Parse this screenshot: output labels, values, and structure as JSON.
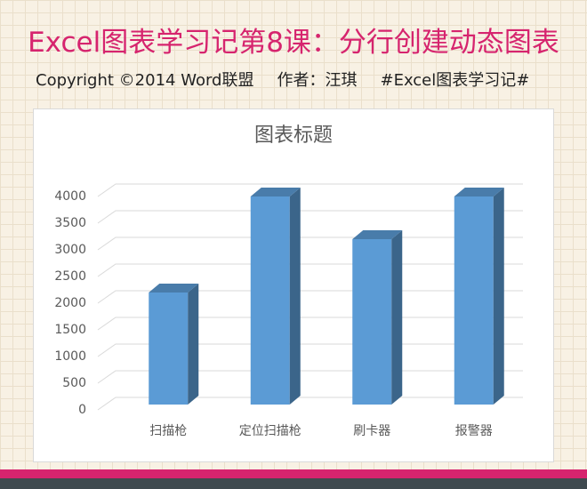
{
  "header": {
    "title": "Excel图表学习记第8课：分行创建动态图表",
    "copyright": "Copyright ©2014 Word联盟",
    "author": "作者：汪琪",
    "tag": "#Excel图表学习记#"
  },
  "chart_data": {
    "type": "bar3d",
    "title": "图表标题",
    "categories": [
      "扫描枪",
      "定位扫描枪",
      "刷卡器",
      "报警器"
    ],
    "values": [
      2100,
      3900,
      3100,
      3900
    ],
    "color": "#5b9bd5",
    "ylim": [
      0,
      4000
    ],
    "yticks": [
      0,
      500,
      1000,
      1500,
      2000,
      2500,
      3000,
      3500,
      4000
    ],
    "grid": true
  }
}
